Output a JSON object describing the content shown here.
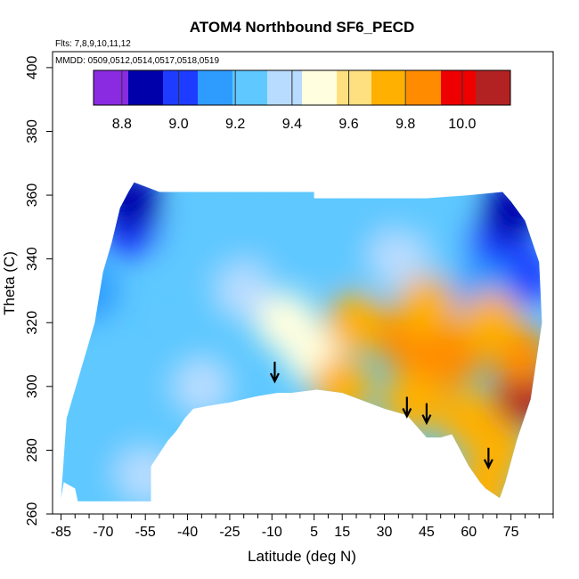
{
  "chart_data": {
    "type": "heatmap",
    "title": "ATOM4 Northbound SF6_PECD",
    "flights_note": "Flts: 7,8,9,10,11,12",
    "dates_note": "MMDD: 0509,0512,0514,0517,0518,0519",
    "xlabel": "Latitude (deg N)",
    "ylabel": "Theta (C)",
    "xlim": [
      -88,
      90
    ],
    "ylim": [
      260,
      405
    ],
    "x_ticks": [
      -85,
      -70,
      -55,
      -40,
      -25,
      -10,
      5,
      15,
      30,
      45,
      60,
      75
    ],
    "x_minor_ticks": [
      -80,
      -75,
      -65,
      -60,
      -50,
      -45,
      -35,
      -30,
      -20,
      -15,
      -5,
      0,
      10,
      20,
      25,
      35,
      40,
      50,
      55,
      65,
      70,
      80,
      85,
      90
    ],
    "y_ticks": [
      260,
      280,
      300,
      320,
      340,
      360,
      380,
      400
    ],
    "colorbar": {
      "min": 8.7,
      "max": 10.17,
      "tick_values": [
        8.8,
        9.0,
        9.2,
        9.4,
        9.6,
        9.8,
        10.0
      ],
      "tick_labels": [
        "8.8",
        "9.0",
        "9.2",
        "9.4",
        "9.6",
        "9.8",
        "10.0"
      ],
      "colors": [
        "#8a2be2",
        "#0000aa",
        "#1e3cff",
        "#2e9cff",
        "#5ec8ff",
        "#b8dcff",
        "#ffffe0",
        "#ffe080",
        "#ffb000",
        "#ff8c00",
        "#ee0000",
        "#b22222"
      ]
    },
    "field_polygon": {
      "x": [
        -85,
        -83,
        -78,
        -73,
        -70,
        -67,
        -64,
        -61,
        -59,
        -50,
        -30,
        5,
        5,
        15,
        30,
        45,
        60,
        72,
        75,
        80,
        85,
        86,
        82,
        77,
        73,
        71,
        66,
        64,
        60,
        57,
        54,
        50,
        45,
        42,
        38,
        30,
        15,
        6,
        -3,
        -8,
        -15,
        -20,
        -25,
        -32,
        -38,
        -41,
        -44,
        -47,
        -53,
        -53,
        -61,
        -70,
        -79,
        -80,
        -84,
        -85
      ],
      "y": [
        265,
        290,
        305,
        320,
        336,
        345,
        356,
        361,
        364,
        361,
        361,
        361,
        359,
        359,
        359,
        359,
        360,
        361,
        358,
        352,
        339,
        320,
        296,
        283,
        270,
        265,
        268,
        270,
        275,
        280,
        285,
        284,
        284,
        287,
        291,
        293,
        298,
        299,
        298,
        298,
        297,
        296,
        295,
        294,
        293,
        290,
        286,
        283,
        275,
        264,
        264,
        264,
        264,
        268,
        270,
        265
      ],
      "base_value": 9.3
    },
    "value_field": [
      {
        "lat": -75,
        "theta": 330,
        "value": 9.15
      },
      {
        "lat": -65,
        "theta": 300,
        "value": 9.25
      },
      {
        "lat": -75,
        "theta": 280,
        "value": 9.3
      },
      {
        "lat": -60,
        "theta": 350,
        "value": 9.05
      },
      {
        "lat": -60,
        "theta": 358,
        "value": 8.9
      },
      {
        "lat": -40,
        "theta": 345,
        "value": 9.2
      },
      {
        "lat": -35,
        "theta": 300,
        "value": 9.33
      },
      {
        "lat": -55,
        "theta": 272,
        "value": 9.35
      },
      {
        "lat": -15,
        "theta": 350,
        "value": 9.28
      },
      {
        "lat": -20,
        "theta": 330,
        "value": 9.4
      },
      {
        "lat": -5,
        "theta": 320,
        "value": 9.45
      },
      {
        "lat": 5,
        "theta": 310,
        "value": 9.55
      },
      {
        "lat": 5,
        "theta": 345,
        "value": 9.3
      },
      {
        "lat": 20,
        "theta": 350,
        "value": 9.3
      },
      {
        "lat": 20,
        "theta": 320,
        "value": 9.7
      },
      {
        "lat": 15,
        "theta": 300,
        "value": 9.75
      },
      {
        "lat": 35,
        "theta": 340,
        "value": 9.4
      },
      {
        "lat": 38,
        "theta": 315,
        "value": 9.85
      },
      {
        "lat": 45,
        "theta": 305,
        "value": 9.9
      },
      {
        "lat": 45,
        "theta": 325,
        "value": 9.8
      },
      {
        "lat": 40,
        "theta": 295,
        "value": 9.8
      },
      {
        "lat": 55,
        "theta": 310,
        "value": 9.85
      },
      {
        "lat": 60,
        "theta": 290,
        "value": 9.8
      },
      {
        "lat": 70,
        "theta": 280,
        "value": 9.8
      },
      {
        "lat": 80,
        "theta": 297,
        "value": 10.15
      },
      {
        "lat": 78,
        "theta": 310,
        "value": 9.9
      },
      {
        "lat": 55,
        "theta": 345,
        "value": 9.25
      },
      {
        "lat": 70,
        "theta": 345,
        "value": 9.0
      },
      {
        "lat": 75,
        "theta": 355,
        "value": 8.85
      },
      {
        "lat": 80,
        "theta": 335,
        "value": 9.05
      },
      {
        "lat": 65,
        "theta": 330,
        "value": 9.1
      },
      {
        "lat": 68,
        "theta": 320,
        "value": 9.7
      },
      {
        "lat": 65,
        "theta": 267,
        "value": 9.75
      }
    ],
    "arrows": [
      {
        "lat": -9,
        "theta": 303,
        "label": "down-arrow"
      },
      {
        "lat": 38,
        "theta": 292,
        "label": "down-arrow"
      },
      {
        "lat": 45,
        "theta": 290,
        "label": "down-arrow"
      },
      {
        "lat": 67,
        "theta": 276,
        "label": "down-arrow"
      }
    ]
  }
}
